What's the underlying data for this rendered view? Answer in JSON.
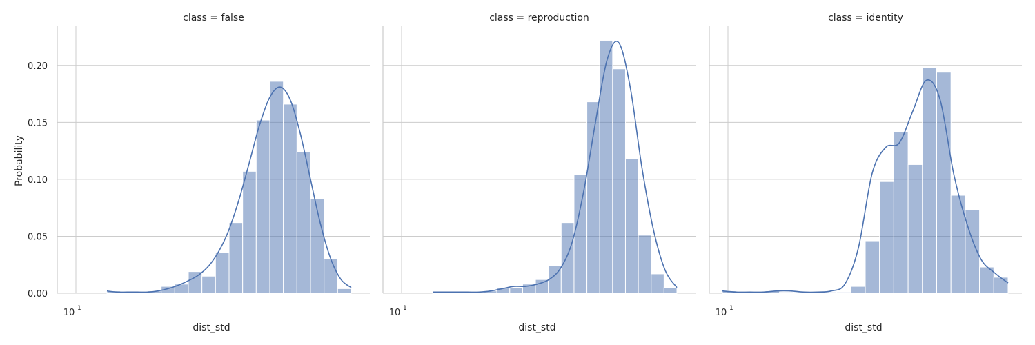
{
  "colors": {
    "series": "#4c72b0",
    "grid": "#cccccc",
    "text": "#262626"
  },
  "chart_data": [
    {
      "type": "bar",
      "title": "class = false",
      "xlabel": "dist_std",
      "ylabel": "Probability",
      "xscale": "log",
      "xtick_labels": [
        {
          "base": "10",
          "exp": "1"
        }
      ],
      "ylim": [
        0,
        0.235
      ],
      "yticks": [
        "0.00",
        "0.05",
        "0.10",
        "0.15",
        "0.20"
      ],
      "grid": true,
      "values": [
        0.002,
        0.001,
        0.001,
        0.002,
        0.006,
        0.008,
        0.019,
        0.015,
        0.036,
        0.062,
        0.107,
        0.152,
        0.186,
        0.166,
        0.124,
        0.083,
        0.03,
        0.004
      ],
      "kde": [
        0.002,
        0.001,
        0.001,
        0.001,
        0.001,
        0.002,
        0.004,
        0.007,
        0.011,
        0.016,
        0.024,
        0.037,
        0.056,
        0.083,
        0.115,
        0.148,
        0.172,
        0.181,
        0.17,
        0.14,
        0.1,
        0.06,
        0.03,
        0.012,
        0.005
      ]
    },
    {
      "type": "bar",
      "title": "class = reproduction",
      "xlabel": "dist_std",
      "ylabel": "",
      "xscale": "log",
      "xtick_labels": [
        {
          "base": "10",
          "exp": "1"
        }
      ],
      "ylim": [
        0,
        0.235
      ],
      "grid": true,
      "values": [
        0.001,
        0.001,
        0.001,
        0.001,
        0.002,
        0.005,
        0.005,
        0.008,
        0.012,
        0.024,
        0.062,
        0.104,
        0.168,
        0.222,
        0.197,
        0.118,
        0.051,
        0.017,
        0.005
      ],
      "kde": [
        0.001,
        0.001,
        0.001,
        0.001,
        0.001,
        0.002,
        0.004,
        0.006,
        0.006,
        0.008,
        0.012,
        0.022,
        0.045,
        0.09,
        0.15,
        0.205,
        0.22,
        0.18,
        0.11,
        0.055,
        0.02,
        0.005
      ]
    },
    {
      "type": "bar",
      "title": "class = identity",
      "xlabel": "dist_std",
      "ylabel": "",
      "xscale": "log",
      "xtick_labels": [
        {
          "base": "10",
          "exp": "1"
        }
      ],
      "ylim": [
        0,
        0.235
      ],
      "grid": true,
      "values": [
        0.002,
        0.001,
        0.001,
        0.002,
        0.001,
        0.001,
        0.001,
        0.001,
        0.001,
        0.006,
        0.046,
        0.098,
        0.142,
        0.113,
        0.198,
        0.194,
        0.086,
        0.073,
        0.023,
        0.014
      ],
      "kde": [
        0.002,
        0.001,
        0.001,
        0.001,
        0.002,
        0.002,
        0.001,
        0.001,
        0.002,
        0.008,
        0.04,
        0.105,
        0.128,
        0.132,
        0.16,
        0.187,
        0.17,
        0.105,
        0.06,
        0.03,
        0.018,
        0.009
      ]
    }
  ]
}
